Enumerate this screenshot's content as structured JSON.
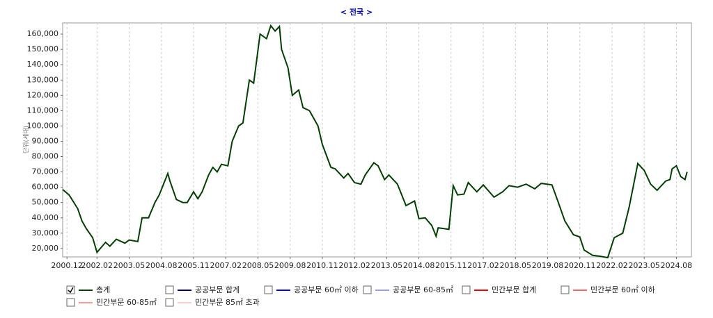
{
  "chart_data": {
    "type": "line",
    "title": "< 전국 >",
    "y_label": "단위(세대)",
    "x": [
      "2000.10",
      "2001.01",
      "2001.05",
      "2001.07",
      "2001.09",
      "2001.12",
      "2002.02",
      "2002.06",
      "2002.08",
      "2002.11",
      "2003.03",
      "2003.05",
      "2003.09",
      "2003.11",
      "2004.02",
      "2004.05",
      "2004.07",
      "2004.11",
      "2004.12",
      "2005.03",
      "2005.06",
      "2005.08",
      "2005.11",
      "2006.01",
      "2006.03",
      "2006.06",
      "2006.08",
      "2006.10",
      "2006.12",
      "2007.03",
      "2007.05",
      "2007.08",
      "2007.10",
      "2008.01",
      "2008.03",
      "2008.06",
      "2008.09",
      "2008.11",
      "2009.01",
      "2009.03",
      "2009.04",
      "2009.07",
      "2009.09",
      "2009.12",
      "2010.02",
      "2010.05",
      "2010.09",
      "2010.11",
      "2011.03",
      "2011.05",
      "2011.09",
      "2011.11",
      "2012.02",
      "2012.05",
      "2012.07",
      "2012.11",
      "2013.01",
      "2013.04",
      "2013.06",
      "2013.10",
      "2014.02",
      "2014.06",
      "2014.08",
      "2014.11",
      "2015.02",
      "2015.04",
      "2015.05",
      "2015.10",
      "2015.12",
      "2016.02",
      "2016.05",
      "2016.07",
      "2016.11",
      "2017.02",
      "2017.07",
      "2017.11",
      "2018.02",
      "2018.06",
      "2018.10",
      "2019.02",
      "2019.05",
      "2019.10",
      "2020.01",
      "2020.04",
      "2020.08",
      "2020.11",
      "2021.01",
      "2021.05",
      "2021.08",
      "2021.12",
      "2022.03",
      "2022.07",
      "2022.10",
      "2023.02",
      "2023.05",
      "2023.08",
      "2023.11",
      "2024.03",
      "2024.05",
      "2024.06",
      "2024.08",
      "2024.10",
      "2024.12",
      "2025.01"
    ],
    "series": [
      {
        "name": "총계",
        "color": "#004000",
        "visible": true,
        "values": [
          58500,
          55000,
          46000,
          38000,
          33000,
          27000,
          17500,
          24000,
          21500,
          26000,
          23500,
          25500,
          24500,
          40000,
          40000,
          50000,
          55000,
          69000,
          64000,
          52000,
          50000,
          50000,
          57000,
          52500,
          57000,
          68000,
          73000,
          70000,
          75000,
          74000,
          90000,
          100000,
          102000,
          130000,
          128000,
          160000,
          157000,
          165500,
          162000,
          165000,
          150000,
          138000,
          120000,
          123500,
          112000,
          110000,
          100000,
          88000,
          73000,
          72000,
          66000,
          69000,
          63000,
          62000,
          68000,
          76000,
          74000,
          65000,
          68000,
          62000,
          48000,
          51000,
          39500,
          40000,
          35000,
          28000,
          33500,
          32500,
          61000,
          55000,
          55500,
          63000,
          57000,
          61500,
          53500,
          57000,
          61000,
          60000,
          62000,
          59000,
          62500,
          61500,
          50000,
          38000,
          29000,
          27500,
          19000,
          15500,
          15000,
          14000,
          27000,
          30000,
          47000,
          75500,
          71000,
          62000,
          58000,
          64000,
          65000,
          72000,
          74000,
          67000,
          65000,
          70000
        ]
      },
      {
        "name": "공공부문 합계",
        "color": "#000080",
        "visible": false
      },
      {
        "name": "공공부문 60㎡ 이하",
        "color": "#0000ff",
        "visible": false
      },
      {
        "name": "공공부문 60-85㎡",
        "color": "#9999ff",
        "visible": false
      },
      {
        "name": "민간부문 합계",
        "color": "#ff0000",
        "visible": false
      },
      {
        "name": "민간부문 60㎡ 이하",
        "color": "#ff6060",
        "visible": false
      },
      {
        "name": "민간부문 60-85㎡",
        "color": "#ff9999",
        "visible": false
      },
      {
        "name": "민간부문 85㎡ 초과",
        "color": "#ffcccc",
        "visible": false
      }
    ],
    "xlim": [
      "2000.10",
      "2025.03"
    ],
    "xticks": [
      "2000.12",
      "2002.02",
      "2003.05",
      "2004.08",
      "2005.11",
      "2007.02",
      "2008.05",
      "2009.08",
      "2010.11",
      "2012.02",
      "2013.05",
      "2014.08",
      "2015.11",
      "2017.02",
      "2018.05",
      "2019.08",
      "2020.11",
      "2022.02",
      "2023.05",
      "2024.08"
    ],
    "ylim": [
      14500,
      167300
    ],
    "yticks": [
      {
        "value": 20000,
        "label": "20,000"
      },
      {
        "value": 30000,
        "label": "30,000"
      },
      {
        "value": 40000,
        "label": "40,000"
      },
      {
        "value": 50000,
        "label": "50,000"
      },
      {
        "value": 60000,
        "label": "60,000"
      },
      {
        "value": 70000,
        "label": "70,000"
      },
      {
        "value": 80000,
        "label": "80,000"
      },
      {
        "value": 90000,
        "label": "90,000"
      },
      {
        "value": 100000,
        "label": "100,000"
      },
      {
        "value": 110000,
        "label": "110,000"
      },
      {
        "value": 120000,
        "label": "120,000"
      },
      {
        "value": 130000,
        "label": "130,000"
      },
      {
        "value": 140000,
        "label": "140,000"
      },
      {
        "value": 150000,
        "label": "150,000"
      },
      {
        "value": 160000,
        "label": "160,000"
      }
    ],
    "grid": "x"
  }
}
